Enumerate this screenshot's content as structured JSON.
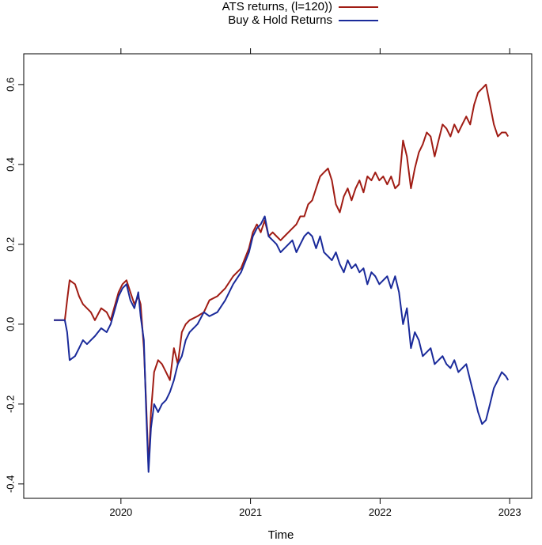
{
  "chart_data": {
    "type": "line",
    "x_label": "Time",
    "legend": "top",
    "xlim": [
      2019.25,
      2023.17
    ],
    "ylim": [
      -0.436,
      0.677
    ],
    "xticks": [
      2020,
      2021,
      2022,
      2023
    ],
    "yticks": [
      -0.4,
      -0.2,
      {
        "value": 0,
        "label": "0.0"
      },
      0.2,
      0.4,
      0.6
    ],
    "x": [
      2019.482,
      2019.524,
      2019.567,
      2019.585,
      2019.604,
      2019.646,
      2019.677,
      2019.707,
      2019.738,
      2019.768,
      2019.799,
      2019.848,
      2019.89,
      2019.921,
      2019.982,
      2020.012,
      2020.043,
      2020.073,
      2020.104,
      2020.134,
      2020.152,
      2020.177,
      2020.195,
      2020.213,
      2020.232,
      2020.256,
      2020.287,
      2020.317,
      2020.348,
      2020.378,
      2020.409,
      2020.439,
      2020.47,
      2020.5,
      2020.53,
      2020.591,
      2020.64,
      2020.683,
      2020.744,
      2020.805,
      2020.866,
      2020.927,
      2020.988,
      2021.018,
      2021.049,
      2021.079,
      2021.11,
      2021.14,
      2021.171,
      2021.201,
      2021.232,
      2021.262,
      2021.323,
      2021.354,
      2021.384,
      2021.415,
      2021.445,
      2021.476,
      2021.506,
      2021.537,
      2021.567,
      2021.598,
      2021.628,
      2021.659,
      2021.689,
      2021.72,
      2021.75,
      2021.78,
      2021.811,
      2021.841,
      2021.872,
      2021.902,
      2021.933,
      2021.963,
      2021.994,
      2022.024,
      2022.055,
      2022.085,
      2022.116,
      2022.146,
      2022.177,
      2022.207,
      2022.238,
      2022.268,
      2022.299,
      2022.329,
      2022.36,
      2022.39,
      2022.421,
      2022.451,
      2022.482,
      2022.512,
      2022.543,
      2022.573,
      2022.604,
      2022.634,
      2022.665,
      2022.695,
      2022.726,
      2022.756,
      2022.787,
      2022.817,
      2022.848,
      2022.878,
      2022.909,
      2022.939,
      2022.97,
      2022.988
    ],
    "series": [
      {
        "name": "ATS returns, (l=120))",
        "color": "#a01c14",
        "values": [
          0.01,
          0.01,
          0.01,
          0.06,
          0.11,
          0.1,
          0.07,
          0.05,
          0.04,
          0.03,
          0.01,
          0.04,
          0.03,
          0.01,
          0.08,
          0.1,
          0.11,
          0.08,
          0.05,
          0.07,
          0.05,
          -0.06,
          -0.2,
          -0.36,
          -0.22,
          -0.12,
          -0.09,
          -0.1,
          -0.12,
          -0.14,
          -0.06,
          -0.1,
          -0.02,
          0.0,
          0.01,
          0.02,
          0.03,
          0.06,
          0.07,
          0.09,
          0.12,
          0.14,
          0.19,
          0.23,
          0.25,
          0.23,
          0.26,
          0.22,
          0.23,
          0.22,
          0.21,
          0.22,
          0.24,
          0.25,
          0.27,
          0.27,
          0.3,
          0.31,
          0.34,
          0.37,
          0.38,
          0.39,
          0.36,
          0.3,
          0.28,
          0.32,
          0.34,
          0.31,
          0.34,
          0.36,
          0.33,
          0.37,
          0.36,
          0.38,
          0.36,
          0.37,
          0.35,
          0.37,
          0.34,
          0.35,
          0.46,
          0.42,
          0.34,
          0.39,
          0.43,
          0.45,
          0.48,
          0.47,
          0.42,
          0.46,
          0.5,
          0.49,
          0.47,
          0.5,
          0.48,
          0.5,
          0.52,
          0.5,
          0.55,
          0.58,
          0.59,
          0.6,
          0.55,
          0.5,
          0.47,
          0.48,
          0.48,
          0.47
        ]
      },
      {
        "name": "Buy & Hold Returns",
        "color": "#1a2a9a",
        "values": [
          0.01,
          0.01,
          0.01,
          -0.02,
          -0.09,
          -0.08,
          -0.06,
          -0.04,
          -0.05,
          -0.04,
          -0.03,
          -0.01,
          -0.02,
          0.0,
          0.07,
          0.09,
          0.1,
          0.06,
          0.04,
          0.08,
          0.02,
          -0.04,
          -0.22,
          -0.37,
          -0.26,
          -0.2,
          -0.22,
          -0.2,
          -0.19,
          -0.17,
          -0.14,
          -0.1,
          -0.08,
          -0.04,
          -0.02,
          0.0,
          0.03,
          0.02,
          0.03,
          0.06,
          0.1,
          0.13,
          0.18,
          0.22,
          0.24,
          0.25,
          0.27,
          0.22,
          0.21,
          0.2,
          0.18,
          0.19,
          0.21,
          0.18,
          0.2,
          0.22,
          0.23,
          0.22,
          0.19,
          0.22,
          0.18,
          0.17,
          0.16,
          0.18,
          0.15,
          0.13,
          0.16,
          0.14,
          0.15,
          0.13,
          0.14,
          0.1,
          0.13,
          0.12,
          0.1,
          0.11,
          0.12,
          0.09,
          0.12,
          0.08,
          0.0,
          0.04,
          -0.06,
          -0.02,
          -0.04,
          -0.08,
          -0.07,
          -0.06,
          -0.1,
          -0.09,
          -0.08,
          -0.1,
          -0.11,
          -0.09,
          -0.12,
          -0.11,
          -0.1,
          -0.14,
          -0.18,
          -0.22,
          -0.25,
          -0.24,
          -0.2,
          -0.16,
          -0.14,
          -0.12,
          -0.13,
          -0.14
        ]
      }
    ]
  }
}
